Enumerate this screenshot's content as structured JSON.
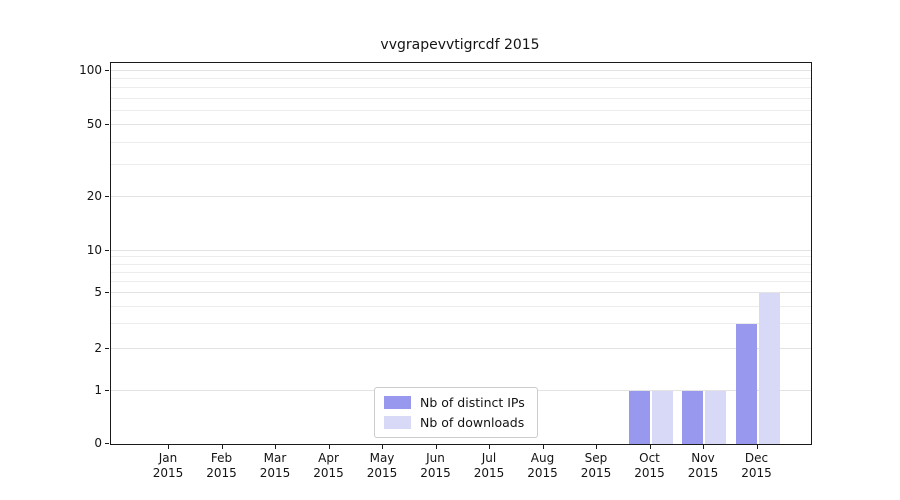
{
  "chart_data": {
    "type": "bar",
    "title": "vvgrapevvtigrcdf 2015",
    "categories": [
      "Jan",
      "Feb",
      "Mar",
      "Apr",
      "May",
      "Jun",
      "Jul",
      "Aug",
      "Sep",
      "Oct",
      "Nov",
      "Dec"
    ],
    "year_label": "2015",
    "series": [
      {
        "name": "Nb of distinct IPs",
        "color": "#9898ee",
        "values": [
          0,
          0,
          0,
          0,
          0,
          0,
          0,
          0,
          0,
          1,
          1,
          3
        ]
      },
      {
        "name": "Nb of downloads",
        "color": "#d8d8f7",
        "values": [
          0,
          0,
          0,
          0,
          0,
          0,
          0,
          0,
          0,
          1,
          1,
          5
        ]
      }
    ],
    "yscale": "symlog-like",
    "ylim": [
      0,
      100
    ],
    "y_ticks": [
      0,
      1,
      2,
      5,
      10,
      20,
      50,
      100
    ],
    "y_minor_ticks": [
      3,
      4,
      6,
      7,
      8,
      9,
      30,
      40,
      60,
      70,
      80,
      90
    ],
    "grid": "horizontal",
    "legend_position": "lower center",
    "colors": {
      "grid_major": "#e3e3e3",
      "grid_minor": "#ececec",
      "axis": "#1a1a1a",
      "legend_border": "#cccccc",
      "background": "#ffffff"
    }
  }
}
